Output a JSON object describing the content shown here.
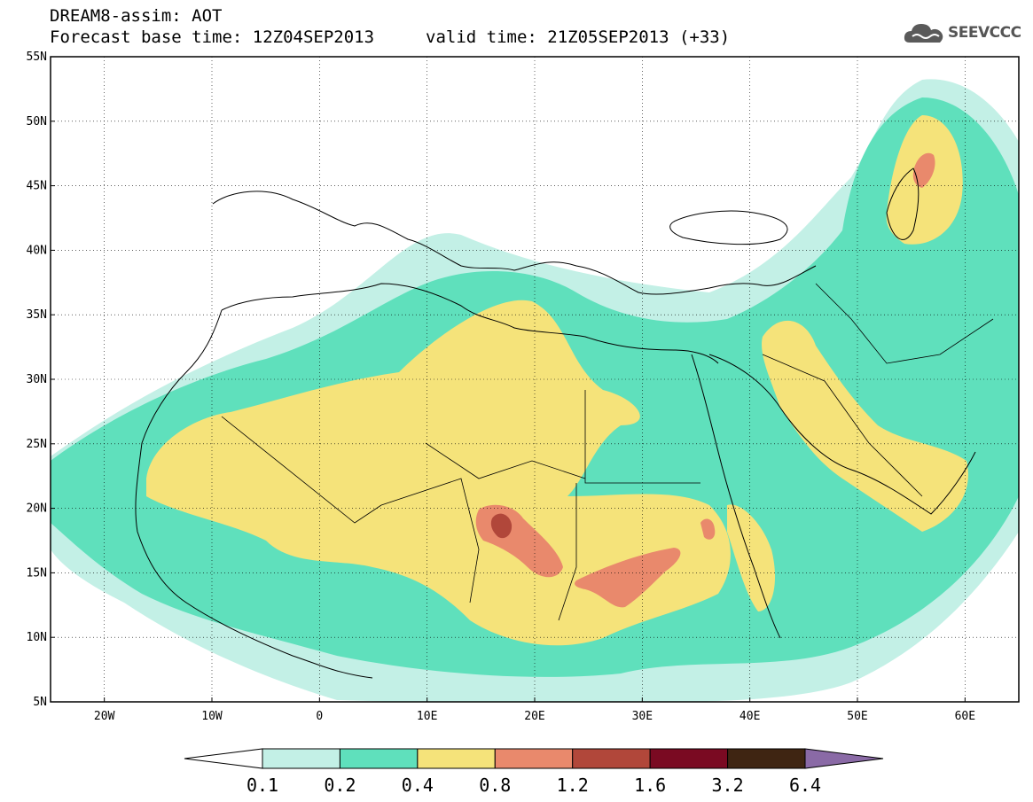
{
  "header": {
    "title": "DREAM8-assim: AOT",
    "base_time": "Forecast base time: 12Z04SEP2013",
    "valid_time": "valid time: 21Z05SEP2013 (+33)",
    "logo_text": "SEEVCCC"
  },
  "map": {
    "projection": "lat-lon",
    "lon_range": [
      -25,
      65
    ],
    "lat_range": [
      5,
      55
    ],
    "lat_labels": [
      "55N",
      "50N",
      "45N",
      "40N",
      "35N",
      "30N",
      "25N",
      "20N",
      "15N",
      "10N",
      "5N"
    ],
    "lon_labels": [
      "20W",
      "10W",
      "0",
      "10E",
      "20E",
      "30E",
      "40E",
      "50E",
      "60E"
    ],
    "gridlines": true
  },
  "colorbar": {
    "labels": [
      "0.1",
      "0.2",
      "0.4",
      "0.8",
      "1.2",
      "1.6",
      "3.2",
      "6.4"
    ],
    "colors": [
      "#ffffff",
      "#c3f0e6",
      "#5fe0bc",
      "#f5e37a",
      "#e9896c",
      "#b1473a",
      "#7a0a22",
      "#3f2512",
      "#8a6aa6"
    ]
  }
}
